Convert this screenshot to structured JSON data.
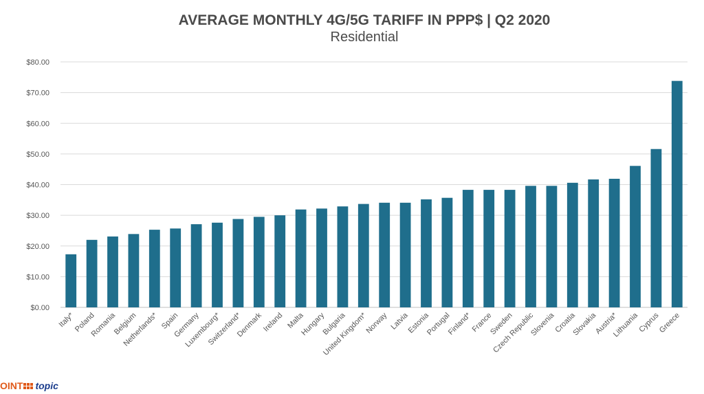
{
  "chart_data": {
    "type": "bar",
    "title": "AVERAGE MONTHLY 4G/5G TARIFF IN PPP$ | Q2 2020",
    "subtitle": "Residential",
    "xlabel": "",
    "ylabel": "",
    "ylim": [
      0,
      80
    ],
    "yticks": [
      "$0.00",
      "$10.00",
      "$20.00",
      "$30.00",
      "$40.00",
      "$50.00",
      "$60.00",
      "$70.00",
      "$80.00"
    ],
    "grid": true,
    "legend": "none",
    "bar_color": "#1f6e8c",
    "categories": [
      "Italy*",
      "Poland",
      "Romania",
      "Belgium",
      "Netherlands*",
      "Spain",
      "Germany",
      "Luxembourg*",
      "Switzerland*",
      "Denmark",
      "Ireland",
      "Malta",
      "Hungary",
      "Bulgaria",
      "United Kingdom*",
      "Norway",
      "Latvia",
      "Estonia",
      "Portugal",
      "Finland*",
      "France",
      "Sweden",
      "Czech Republic",
      "Slovenia",
      "Croatia",
      "Slovakia",
      "Austria*",
      "Lithuania",
      "Cyprus",
      "Greece"
    ],
    "values": [
      17.3,
      22.0,
      23.1,
      23.9,
      25.3,
      25.7,
      27.1,
      27.6,
      28.8,
      29.5,
      30.0,
      31.9,
      32.2,
      32.9,
      33.7,
      34.1,
      34.1,
      35.2,
      35.7,
      38.3,
      38.3,
      38.3,
      39.6,
      39.6,
      40.6,
      41.7,
      41.9,
      46.1,
      51.6,
      73.8
    ]
  },
  "logo": {
    "text_left": "OINT",
    "text_right": "topic"
  }
}
